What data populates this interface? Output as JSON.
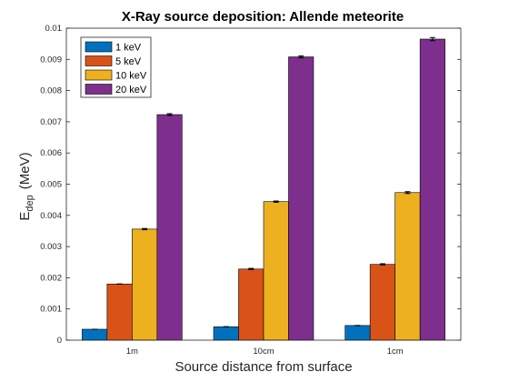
{
  "chart_data": {
    "type": "bar",
    "title": "X-Ray source deposition: Allende meteorite",
    "xlabel": "Source distance from surface",
    "ylabel_main": "E",
    "ylabel_sub": "dep",
    "ylabel_unit": "(MeV)",
    "categories": [
      "1m",
      "10cm",
      "1cm"
    ],
    "ylim": [
      0,
      0.01
    ],
    "yticks": [
      "0",
      "0.001",
      "0.002",
      "0.003",
      "0.004",
      "0.005",
      "0.006",
      "0.007",
      "0.008",
      "0.009",
      "0.01"
    ],
    "legend_position": "top-left",
    "grid": false,
    "series": [
      {
        "name": "1 keV",
        "color": "#0072BD",
        "values": [
          0.00035,
          0.00043,
          0.00047
        ],
        "errors": [
          0,
          0,
          0
        ]
      },
      {
        "name": "5 keV",
        "color": "#D95319",
        "values": [
          0.0018,
          0.00228,
          0.00243
        ],
        "errors": [
          0,
          2e-05,
          2e-05
        ]
      },
      {
        "name": "10 keV",
        "color": "#EDB120",
        "values": [
          0.00356,
          0.00444,
          0.00473
        ],
        "errors": [
          2e-05,
          2e-05,
          3e-05
        ]
      },
      {
        "name": "20 keV",
        "color": "#7E2F8E",
        "values": [
          0.00723,
          0.00908,
          0.00965
        ],
        "errors": [
          3e-05,
          3e-05,
          5e-05
        ]
      }
    ]
  }
}
